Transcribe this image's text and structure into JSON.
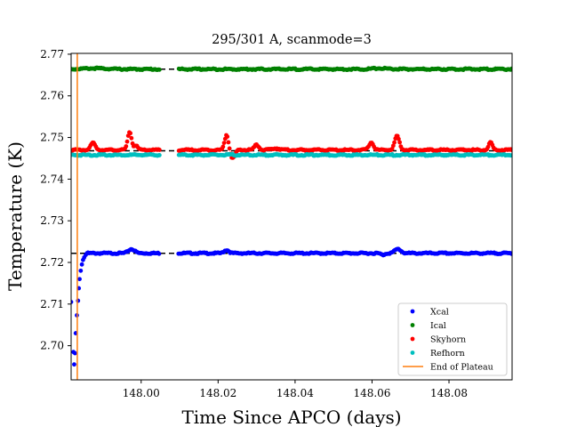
{
  "chart_data": {
    "type": "scatter",
    "title": "295/301 A, scanmode=3",
    "xlabel": "Time Since APCO (days)",
    "ylabel": "Temperature (K)",
    "xlim": [
      147.9818,
      148.0964
    ],
    "ylim": [
      2.6918,
      2.7702
    ],
    "xticks": [
      148.0,
      148.02,
      148.04,
      148.06,
      148.08
    ],
    "xtick_labels": [
      "148.00",
      "148.02",
      "148.04",
      "148.06",
      "148.08"
    ],
    "yticks": [
      2.7,
      2.71,
      2.72,
      2.73,
      2.74,
      2.75,
      2.76,
      2.77
    ],
    "ytick_labels": [
      "2.70",
      "2.71",
      "2.72",
      "2.73",
      "2.74",
      "2.75",
      "2.76",
      "2.77"
    ],
    "legend_position": "lower right",
    "gap": [
      148.0048,
      148.0096
    ],
    "end_of_plateau_x": 147.9834,
    "reference_levels": [
      2.7664,
      2.7468,
      2.7222
    ],
    "series": [
      {
        "name": "Xcal",
        "color": "#0000ff",
        "base": 2.7222,
        "startup": [
          [
            147.9818,
            2.7105
          ],
          [
            147.9824,
            2.6985
          ],
          [
            147.9826,
            2.6955
          ],
          [
            147.9828,
            2.6982
          ],
          [
            147.983,
            2.703
          ],
          [
            147.9833,
            2.7073
          ],
          [
            147.9836,
            2.7108
          ],
          [
            147.9838,
            2.7138
          ],
          [
            147.984,
            2.716
          ],
          [
            147.9843,
            2.718
          ],
          [
            147.9846,
            2.7195
          ],
          [
            147.9849,
            2.7206
          ],
          [
            147.9852,
            2.7212
          ],
          [
            147.9856,
            2.7218
          ]
        ],
        "bumps": [
          [
            147.9975,
            0.001,
            0.0008
          ],
          [
            148.0222,
            0.0008,
            0.0006
          ],
          [
            148.0667,
            0.001,
            0.0008
          ],
          [
            148.0628,
            -0.0004,
            0.0005
          ]
        ]
      },
      {
        "name": "Ical",
        "color": "#008000",
        "base": 2.7664,
        "startup": [],
        "bumps": [
          [
            147.988,
            0.0002,
            0.003
          ],
          [
            148.062,
            0.0002,
            0.002
          ]
        ]
      },
      {
        "name": "Skyhorn",
        "color": "#ff0000",
        "base": 2.747,
        "startup": [],
        "bumps": [
          [
            147.9875,
            0.0017,
            0.0006
          ],
          [
            147.997,
            0.0044,
            0.0005
          ],
          [
            147.9986,
            0.001,
            0.0005
          ],
          [
            148.0222,
            0.0037,
            0.0005
          ],
          [
            148.03,
            0.0012,
            0.0006
          ],
          [
            148.035,
            0.0004,
            0.001
          ],
          [
            148.0598,
            0.0018,
            0.0006
          ],
          [
            148.0665,
            0.0033,
            0.0006
          ],
          [
            148.0908,
            0.0018,
            0.0005
          ],
          [
            148.0238,
            -0.002,
            0.0006
          ]
        ]
      },
      {
        "name": "Refhorn",
        "color": "#00bfbf",
        "base": 2.7458,
        "startup": [],
        "bumps": []
      }
    ],
    "plateau_series": {
      "name": "End of Plateau",
      "color": "#ff7f0e"
    }
  }
}
